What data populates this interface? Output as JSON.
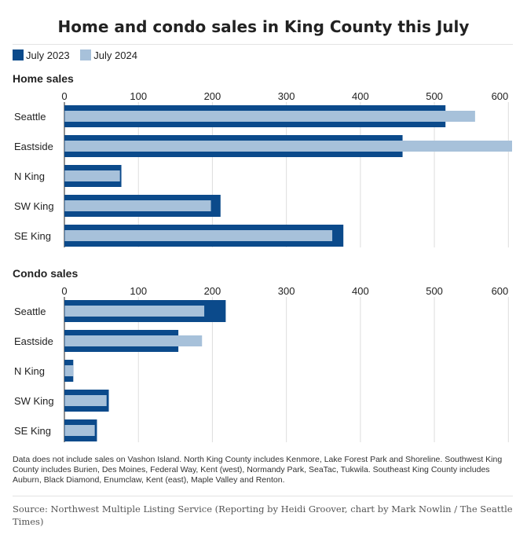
{
  "title": "Home and condo sales in King County this July",
  "legend": [
    {
      "label": "July 2023",
      "color": "#0b4a8b"
    },
    {
      "label": "July 2024",
      "color": "#a7c1da"
    }
  ],
  "chart_data": [
    {
      "type": "bar",
      "orientation": "horizontal",
      "title": "Home sales",
      "categories": [
        "Seattle",
        "Eastside",
        "N King",
        "SW King",
        "SE King"
      ],
      "series": [
        {
          "name": "July 2023",
          "values": [
            515,
            457,
            77,
            211,
            377
          ]
        },
        {
          "name": "July 2024",
          "values": [
            555,
            605,
            75,
            198,
            362
          ]
        }
      ],
      "xticks": [
        0,
        100,
        200,
        300,
        400,
        500,
        600
      ],
      "xlim": [
        0,
        605
      ]
    },
    {
      "type": "bar",
      "orientation": "horizontal",
      "title": "Condo sales",
      "categories": [
        "Seattle",
        "Eastside",
        "N King",
        "SW King",
        "SE King"
      ],
      "series": [
        {
          "name": "July 2023",
          "values": [
            218,
            154,
            12,
            60,
            44
          ]
        },
        {
          "name": "July 2024",
          "values": [
            189,
            186,
            12,
            57,
            41
          ]
        }
      ],
      "xticks": [
        0,
        100,
        200,
        300,
        400,
        500,
        600
      ],
      "xlim": [
        0,
        605
      ]
    }
  ],
  "notes": "Data does not include sales on Vashon Island. North King County includes Kenmore, Lake Forest Park and Shoreline. Southwest King County includes Burien, Des Moines, Federal Way, Kent (west), Normandy Park, SeaTac, Tukwila. Southeast King County includes Auburn, Black Diamond, Enumclaw, Kent (east), Maple Valley and Renton.",
  "source": "Source: Northwest Multiple Listing Service (Reporting by Heidi Groover, chart by Mark Nowlin / The Seattle Times)"
}
